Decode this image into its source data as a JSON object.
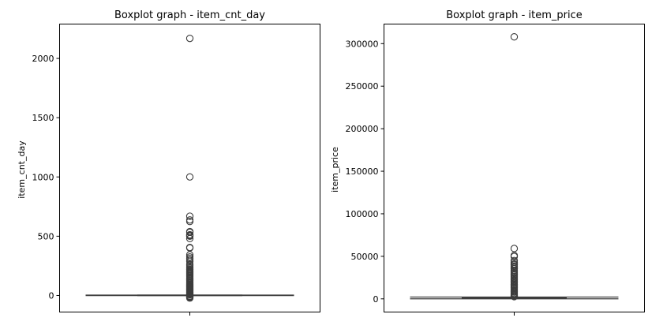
{
  "chart_data": [
    {
      "type": "boxplot",
      "title": "Boxplot graph - item_cnt_day",
      "ylabel": "item_cnt_day",
      "ylim": [
        -140,
        2290
      ],
      "yticks": [
        0,
        500,
        1000,
        1500,
        2000
      ],
      "ytick_labels": [
        "0",
        "500",
        "1000",
        "1500",
        "2000"
      ],
      "grid": false,
      "box": {
        "whisker_low": -1,
        "q1": 1,
        "median": 1,
        "q3": 1,
        "whisker_high": 3
      },
      "outliers": [
        2169,
        1000,
        669,
        637,
        624,
        539,
        533,
        512,
        508,
        502,
        500,
        480,
        405,
        401,
        343,
        325,
        313,
        300,
        288,
        264,
        255,
        242,
        231,
        222,
        217,
        207,
        200,
        194,
        187,
        178,
        169,
        161,
        150,
        142,
        135,
        126,
        118,
        110,
        104,
        97,
        91,
        85,
        79,
        73,
        67,
        61,
        55,
        49,
        43,
        37,
        31,
        25,
        19,
        14,
        9,
        5,
        -6,
        -9,
        -14,
        -16,
        -22
      ]
    },
    {
      "type": "boxplot",
      "title": "Boxplot graph - item_price",
      "ylabel": "item_price",
      "ylim": [
        -15500,
        323000
      ],
      "yticks": [
        0,
        50000,
        100000,
        150000,
        200000,
        250000,
        300000
      ],
      "ytick_labels": [
        "0",
        "50000",
        "100000",
        "150000",
        "200000",
        "250000",
        "300000"
      ],
      "grid": false,
      "box": {
        "whisker_low": 0,
        "q1": 249,
        "median": 399,
        "q3": 999,
        "whisker_high": 2124
      },
      "outliers": [
        307980,
        59200,
        50999,
        49782,
        45000,
        42990,
        41000,
        39990,
        38500,
        36990,
        35500,
        33490,
        32000,
        30490,
        29000,
        27990,
        26500,
        25000,
        23990,
        22500,
        21000,
        19990,
        18500,
        17000,
        15990,
        14500,
        13200,
        11990,
        10500,
        9000,
        7990,
        6500,
        5200,
        4200,
        3300,
        2600
      ]
    }
  ]
}
